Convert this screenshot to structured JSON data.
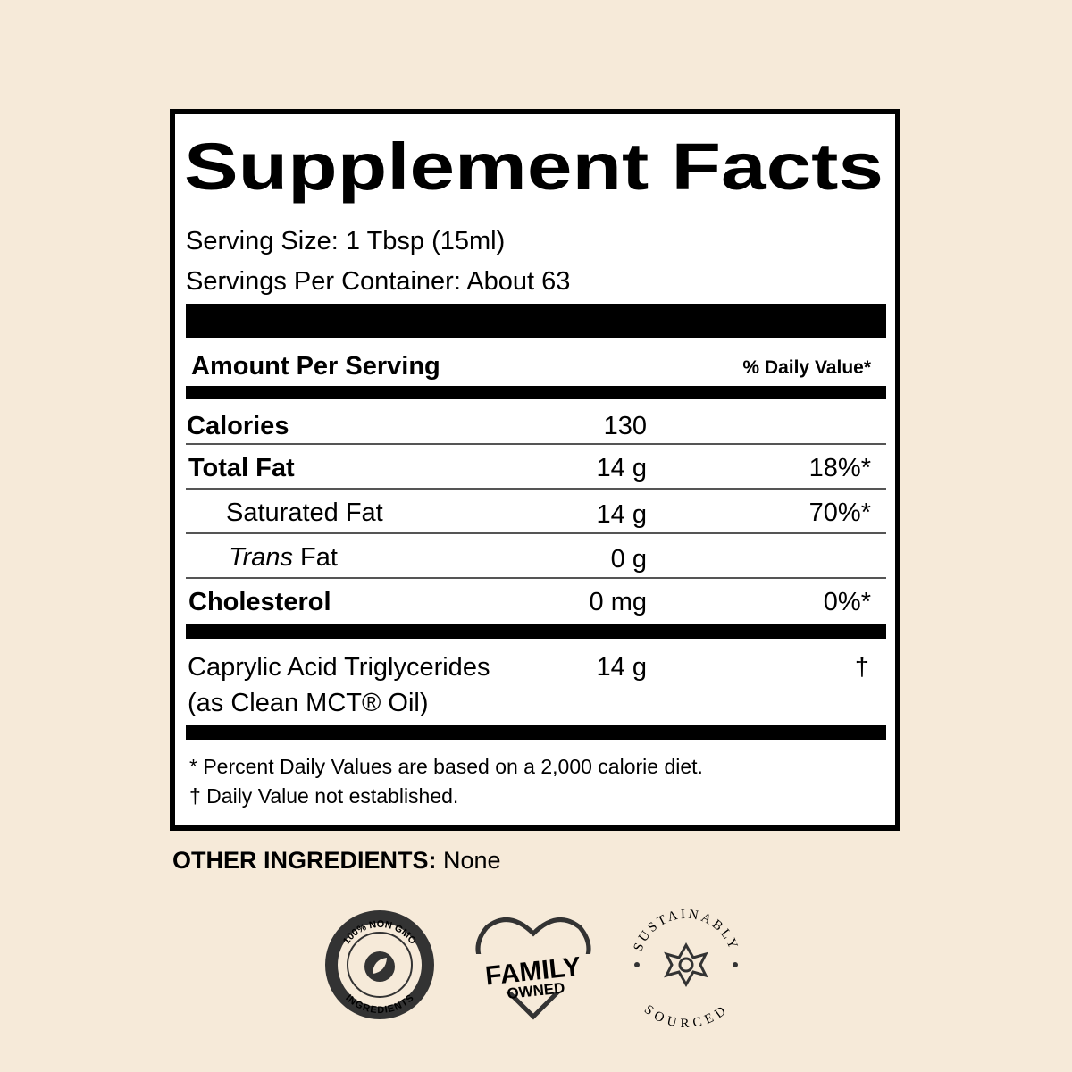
{
  "label": {
    "title": "Supplement Facts",
    "serving_size": "Serving Size: 1 Tbsp (15ml)",
    "servings_per_container": "Servings Per Container: About 63",
    "amount_header": "Amount Per Serving",
    "dv_header": "% Daily Value*",
    "rows": [
      {
        "name": "Calories",
        "amount": "130"
      },
      {
        "name": "Total Fat",
        "amount": "14 g",
        "dv": "18%*"
      },
      {
        "name": "Saturated Fat",
        "amount": "14 g",
        "dv": "70%*"
      },
      {
        "name_italic": "Trans",
        "name": "Fat",
        "amount": "0 g"
      },
      {
        "name": "Cholesterol",
        "amount": "0 mg",
        "dv": "0%*"
      }
    ],
    "ingredient": {
      "name": "Caprylic Acid Triglycerides",
      "source": "(as Clean MCT® Oil)",
      "amount": "14 g",
      "dv": "†"
    },
    "footnotes": [
      "* Percent Daily Values are based on a 2,000 calorie diet.",
      "† Daily Value not established."
    ]
  },
  "other_ingredients": {
    "label": "OTHER INGREDIENTS:",
    "value": "None"
  },
  "badges": [
    {
      "top": "100% NON GMO",
      "bottom": "INGREDIENTS"
    },
    {
      "line1": "FAMILY",
      "line2": "OWNED"
    },
    {
      "top": "SUSTAINABLY",
      "bottom": "SOURCED"
    }
  ]
}
